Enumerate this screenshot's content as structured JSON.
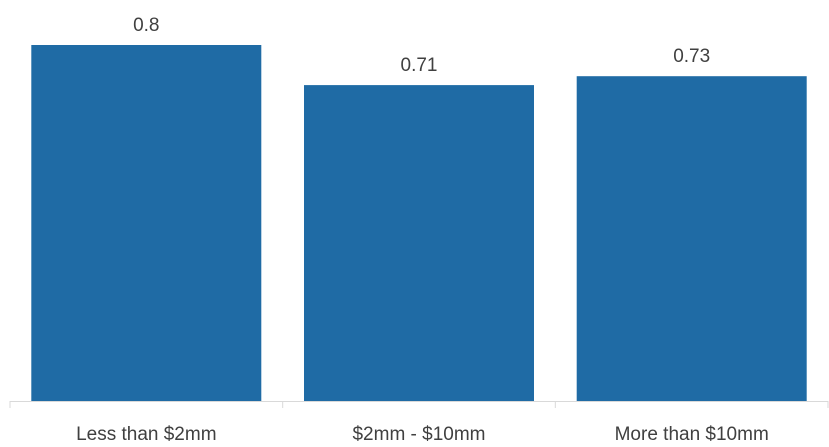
{
  "chart_data": {
    "type": "bar",
    "categories": [
      "Less than $2mm",
      "$2mm - $10mm",
      "More than $10mm"
    ],
    "values": [
      0.8,
      0.71,
      0.73
    ],
    "data_labels": [
      "0.8",
      "0.71",
      "0.73"
    ],
    "title": "",
    "xlabel": "",
    "ylabel": "",
    "ylim": [
      0,
      0.8
    ],
    "grid": false,
    "legend": "none",
    "bar_color": "#1F6BA5",
    "axis_color": "#D9D9D9",
    "text_color": "#404040"
  }
}
